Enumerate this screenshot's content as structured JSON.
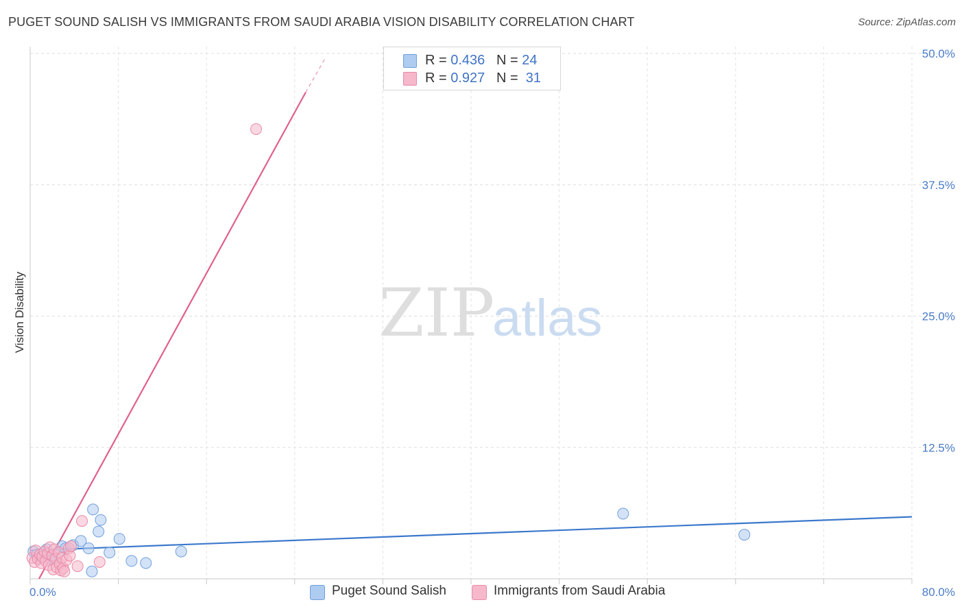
{
  "title": "PUGET SOUND SALISH VS IMMIGRANTS FROM SAUDI ARABIA VISION DISABILITY CORRELATION CHART",
  "source": "Source: ZipAtlas.com",
  "watermark": {
    "zip": "ZIP",
    "atlas": "atlas"
  },
  "legend": [
    {
      "r_label": "R = ",
      "r_value": "0.436",
      "n_label": "N = ",
      "n_value": "24",
      "color": "#aecbf0"
    },
    {
      "r_label": "R = ",
      "r_value": "0.927",
      "n_label": "N = ",
      "n_value": "31",
      "color": "#f6b8cb"
    }
  ],
  "bottom_legend": [
    {
      "label": "Puget Sound Salish",
      "color": "#aecbf0"
    },
    {
      "label": "Immigrants from Saudi Arabia",
      "color": "#f6b8cb"
    }
  ],
  "chart_data": {
    "type": "scatter",
    "title": "PUGET SOUND SALISH VS IMMIGRANTS FROM SAUDI ARABIA VISION DISABILITY CORRELATION CHART",
    "xlabel": "",
    "ylabel": "Vision Disability",
    "xlim": [
      0,
      80
    ],
    "ylim": [
      0,
      50
    ],
    "x_tick_labels": [
      "0.0%",
      "80.0%"
    ],
    "y_ticks": [
      12.5,
      25.0,
      37.5,
      50.0
    ],
    "y_tick_labels": [
      "12.5%",
      "25.0%",
      "37.5%",
      "50.0%"
    ],
    "grid": true,
    "series": [
      {
        "name": "Puget Sound Salish",
        "color": "#aecbf0",
        "line_color": "#3b78cc",
        "points": [
          [
            0.3,
            2.6
          ],
          [
            0.6,
            2.3
          ],
          [
            0.9,
            2.0
          ],
          [
            1.2,
            2.5
          ],
          [
            1.5,
            2.8
          ],
          [
            1.9,
            2.2
          ],
          [
            2.1,
            1.8
          ],
          [
            2.5,
            2.4
          ],
          [
            2.9,
            3.1
          ],
          [
            3.2,
            2.9
          ],
          [
            3.9,
            3.2
          ],
          [
            4.6,
            3.6
          ],
          [
            5.3,
            2.9
          ],
          [
            5.6,
            0.7
          ],
          [
            5.7,
            6.6
          ],
          [
            6.2,
            4.5
          ],
          [
            6.4,
            5.6
          ],
          [
            7.2,
            2.5
          ],
          [
            8.1,
            3.8
          ],
          [
            9.2,
            1.7
          ],
          [
            10.5,
            1.5
          ],
          [
            13.7,
            2.6
          ],
          [
            53.8,
            6.2
          ],
          [
            64.8,
            4.2
          ]
        ],
        "trend": {
          "x": [
            0,
            80
          ],
          "y": [
            2.7,
            5.9
          ]
        }
      },
      {
        "name": "Immigrants from Saudi Arabia",
        "color": "#f6b8cb",
        "line_color": "#e0608a",
        "points": [
          [
            0.2,
            2.0
          ],
          [
            0.4,
            1.6
          ],
          [
            0.5,
            2.7
          ],
          [
            0.7,
            1.9
          ],
          [
            0.9,
            2.3
          ],
          [
            1.0,
            1.5
          ],
          [
            1.1,
            2.1
          ],
          [
            1.3,
            2.6
          ],
          [
            1.4,
            1.7
          ],
          [
            1.6,
            2.4
          ],
          [
            1.7,
            1.3
          ],
          [
            1.8,
            3.0
          ],
          [
            2.0,
            2.2
          ],
          [
            2.1,
            0.9
          ],
          [
            2.2,
            2.8
          ],
          [
            2.3,
            1.9
          ],
          [
            2.4,
            1.1
          ],
          [
            2.6,
            2.5
          ],
          [
            2.7,
            1.4
          ],
          [
            2.8,
            0.8
          ],
          [
            2.9,
            2.0
          ],
          [
            3.0,
            1.0
          ],
          [
            3.1,
            0.7
          ],
          [
            3.3,
            1.8
          ],
          [
            3.5,
            2.9
          ],
          [
            3.6,
            2.2
          ],
          [
            3.7,
            3.1
          ],
          [
            4.3,
            1.2
          ],
          [
            4.7,
            5.5
          ],
          [
            6.3,
            1.6
          ],
          [
            20.5,
            42.8
          ]
        ],
        "trend": {
          "x": [
            0.8,
            25.0
          ],
          "y": [
            0.0,
            46.3
          ]
        },
        "trend_dashed": {
          "x": [
            25.0,
            26.8
          ],
          "y": [
            46.3,
            49.6
          ]
        }
      }
    ]
  }
}
